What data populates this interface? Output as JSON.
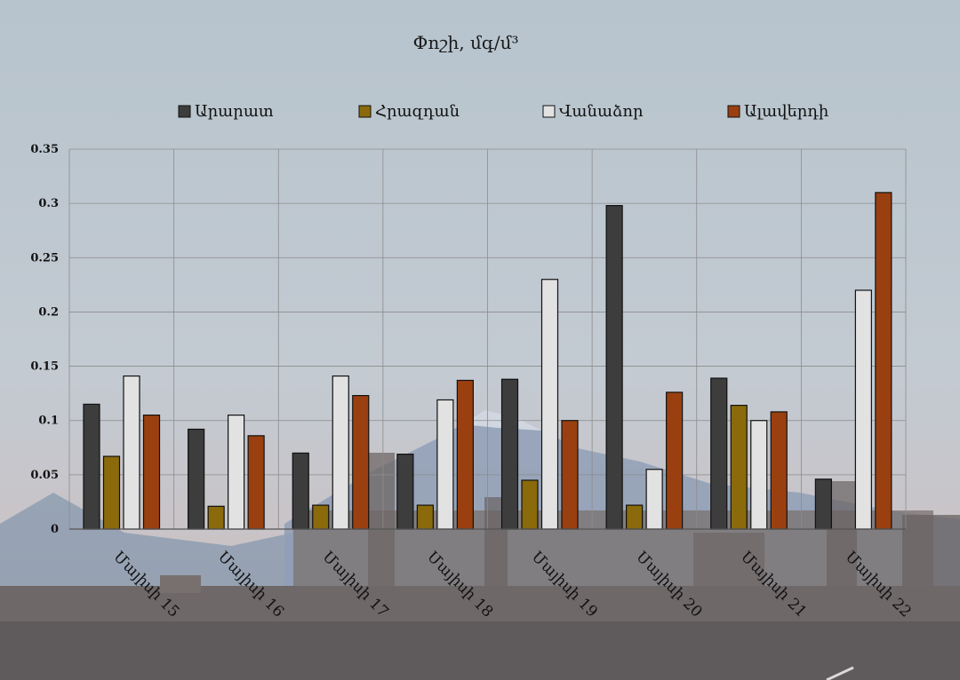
{
  "chart_data": {
    "type": "bar",
    "title": "Փոշի, մգ/մ³",
    "categories": [
      "Մայիսի 15",
      "Մայիսի 16",
      "Մայիսի 17",
      "Մայիսի 18",
      "Մայիսի 19",
      "Մայիսի 20",
      "Մայիսի 21",
      "Մայիսի 22"
    ],
    "series": [
      {
        "name": "Արարատ",
        "color": "#3d3d3d",
        "values": [
          0.115,
          0.092,
          0.07,
          0.069,
          0.138,
          0.298,
          0.139,
          0.046
        ]
      },
      {
        "name": "Հրազդան",
        "color": "#8a6a0a",
        "values": [
          0.067,
          0.021,
          0.022,
          0.022,
          0.045,
          0.022,
          0.114,
          0
        ]
      },
      {
        "name": "Վանաձոր",
        "color": "#e2e2e2",
        "values": [
          0.141,
          0.105,
          0.141,
          0.119,
          0.23,
          0.055,
          0.1,
          0.22
        ]
      },
      {
        "name": "Ալավերդի",
        "color": "#9a4010",
        "values": [
          0.105,
          0.086,
          0.123,
          0.137,
          0.1,
          0.126,
          0.108,
          0.31
        ]
      }
    ],
    "yticks": [
      "0",
      "0.05",
      "0.1",
      "0.15",
      "0.2",
      "0.25",
      "0.3",
      "0.35"
    ],
    "ylim": [
      0,
      0.35
    ],
    "grid": true,
    "legend_position": "top"
  }
}
